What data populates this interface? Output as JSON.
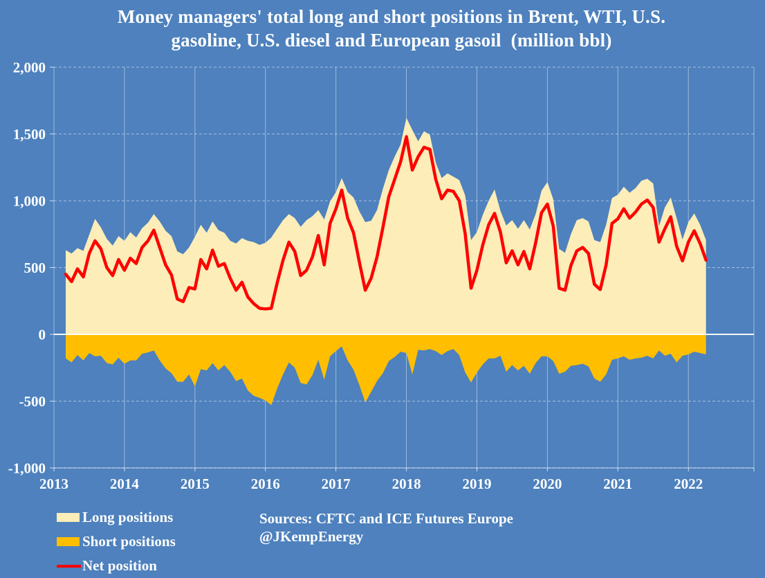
{
  "title": {
    "line1": "Money managers' total long and short positions in Brent, WTI, U.S.",
    "line2": "gasoline, U.S. diesel and European gasoil  (million bbl)"
  },
  "source": {
    "line1": "Sources: CFTC and ICE Futures Europe",
    "line2": "@JKempEnergy"
  },
  "legend": {
    "items": [
      {
        "label": "Long positions",
        "color": "#FCEDB9",
        "type": "box"
      },
      {
        "label": "Short positions",
        "color": "#FFBF00",
        "type": "box"
      },
      {
        "label": "Net position",
        "color": "#FF0000",
        "type": "line"
      }
    ]
  },
  "colors": {
    "background": "#4E81BD",
    "long_area": "#FCEDB9",
    "short_area": "#FFBF00",
    "net_line": "#FF0000",
    "gridline": "rgba(255,255,255,0.5)",
    "zero_line": "rgba(255,255,255,0.95)",
    "axis_text": "#ffffff"
  },
  "chart_data": {
    "type": "area",
    "subtype": "two stacked-from-zero areas (long above 0, short below 0) plus net line overlay",
    "title": "Money managers' total long and short positions in Brent, WTI, U.S. gasoline, U.S. diesel and European gasoil (million bbl)",
    "unit": "million bbl",
    "x_start": "2013-03",
    "x_interval_months": 1,
    "x_end": "2022-04",
    "xlim": [
      2013,
      2022.93
    ],
    "ylim": [
      -1000,
      2000
    ],
    "grid": "horizontal dashed white every 500; vertical solid white every year; bold white line at 0",
    "legend_position": "bottom-left",
    "y_ticks": [
      {
        "label": "2,000",
        "value": 2000
      },
      {
        "label": "1,500",
        "value": 1500
      },
      {
        "label": "1,000",
        "value": 1000
      },
      {
        "label": "500",
        "value": 500
      },
      {
        "label": "0",
        "value": 0
      },
      {
        "label": "-500",
        "value": -500
      },
      {
        "label": "-1,000",
        "value": -1000
      }
    ],
    "x_ticks": [
      {
        "label": "2013",
        "value": 2013
      },
      {
        "label": "2014",
        "value": 2014
      },
      {
        "label": "2015",
        "value": 2015
      },
      {
        "label": "2016",
        "value": 2016
      },
      {
        "label": "2017",
        "value": 2017
      },
      {
        "label": "2018",
        "value": 2018
      },
      {
        "label": "2019",
        "value": 2019
      },
      {
        "label": "2020",
        "value": 2020
      },
      {
        "label": "2021",
        "value": 2021
      },
      {
        "label": "2022",
        "value": 2022
      }
    ],
    "series": [
      {
        "name": "Long positions",
        "type": "area",
        "baseline": 0,
        "color": "#FCEDB9",
        "values": [
          630,
          605,
          645,
          625,
          745,
          865,
          800,
          715,
          665,
          735,
          700,
          765,
          725,
          795,
          835,
          900,
          845,
          775,
          735,
          620,
          600,
          650,
          730,
          820,
          760,
          845,
          780,
          760,
          700,
          680,
          720,
          700,
          690,
          670,
          685,
          725,
          790,
          855,
          900,
          870,
          805,
          855,
          885,
          930,
          860,
          995,
          1065,
          1170,
          1065,
          1025,
          920,
          840,
          850,
          930,
          1090,
          1230,
          1330,
          1420,
          1620,
          1530,
          1445,
          1520,
          1495,
          1285,
          1170,
          1205,
          1180,
          1155,
          1040,
          705,
          765,
          895,
          1000,
          1085,
          925,
          815,
          855,
          790,
          855,
          785,
          900,
          1075,
          1140,
          1010,
          640,
          610,
          750,
          855,
          870,
          845,
          705,
          690,
          820,
          1020,
          1045,
          1105,
          1060,
          1095,
          1150,
          1165,
          1130,
          810,
          950,
          1025,
          870,
          710,
          840,
          905,
          820,
          705
        ]
      },
      {
        "name": "Short positions",
        "type": "area",
        "baseline": 0,
        "color": "#FFBF00",
        "values": [
          -180,
          -210,
          -155,
          -195,
          -140,
          -165,
          -160,
          -215,
          -225,
          -175,
          -220,
          -195,
          -195,
          -145,
          -135,
          -120,
          -195,
          -255,
          -290,
          -355,
          -355,
          -300,
          -390,
          -260,
          -270,
          -215,
          -270,
          -230,
          -280,
          -350,
          -330,
          -420,
          -460,
          -475,
          -495,
          -530,
          -405,
          -300,
          -210,
          -250,
          -365,
          -375,
          -305,
          -190,
          -340,
          -165,
          -125,
          -90,
          -195,
          -265,
          -380,
          -510,
          -430,
          -350,
          -290,
          -200,
          -170,
          -130,
          -140,
          -300,
          -115,
          -120,
          -110,
          -125,
          -155,
          -125,
          -110,
          -155,
          -285,
          -360,
          -285,
          -225,
          -180,
          -180,
          -160,
          -280,
          -230,
          -270,
          -235,
          -295,
          -215,
          -165,
          -165,
          -200,
          -295,
          -280,
          -235,
          -230,
          -220,
          -240,
          -330,
          -355,
          -300,
          -190,
          -180,
          -165,
          -190,
          -180,
          -175,
          -160,
          -180,
          -120,
          -160,
          -145,
          -210,
          -160,
          -150,
          -130,
          -140,
          -150
        ]
      },
      {
        "name": "Net position",
        "type": "line",
        "color": "#FF0000",
        "values": [
          450,
          395,
          490,
          430,
          605,
          700,
          640,
          500,
          440,
          560,
          480,
          570,
          530,
          650,
          700,
          780,
          650,
          520,
          445,
          265,
          245,
          350,
          340,
          560,
          490,
          630,
          510,
          530,
          420,
          330,
          390,
          280,
          230,
          195,
          190,
          195,
          385,
          555,
          690,
          620,
          440,
          480,
          580,
          740,
          520,
          830,
          940,
          1080,
          870,
          760,
          540,
          330,
          420,
          580,
          800,
          1030,
          1160,
          1290,
          1480,
          1230,
          1330,
          1400,
          1385,
          1160,
          1015,
          1080,
          1070,
          1000,
          755,
          345,
          480,
          670,
          820,
          905,
          765,
          535,
          625,
          520,
          620,
          490,
          685,
          910,
          975,
          810,
          345,
          330,
          515,
          625,
          650,
          605,
          375,
          335,
          520,
          830,
          865,
          940,
          870,
          915,
          975,
          1005,
          950,
          690,
          790,
          880,
          660,
          550,
          690,
          775,
          680,
          555
        ]
      }
    ]
  }
}
